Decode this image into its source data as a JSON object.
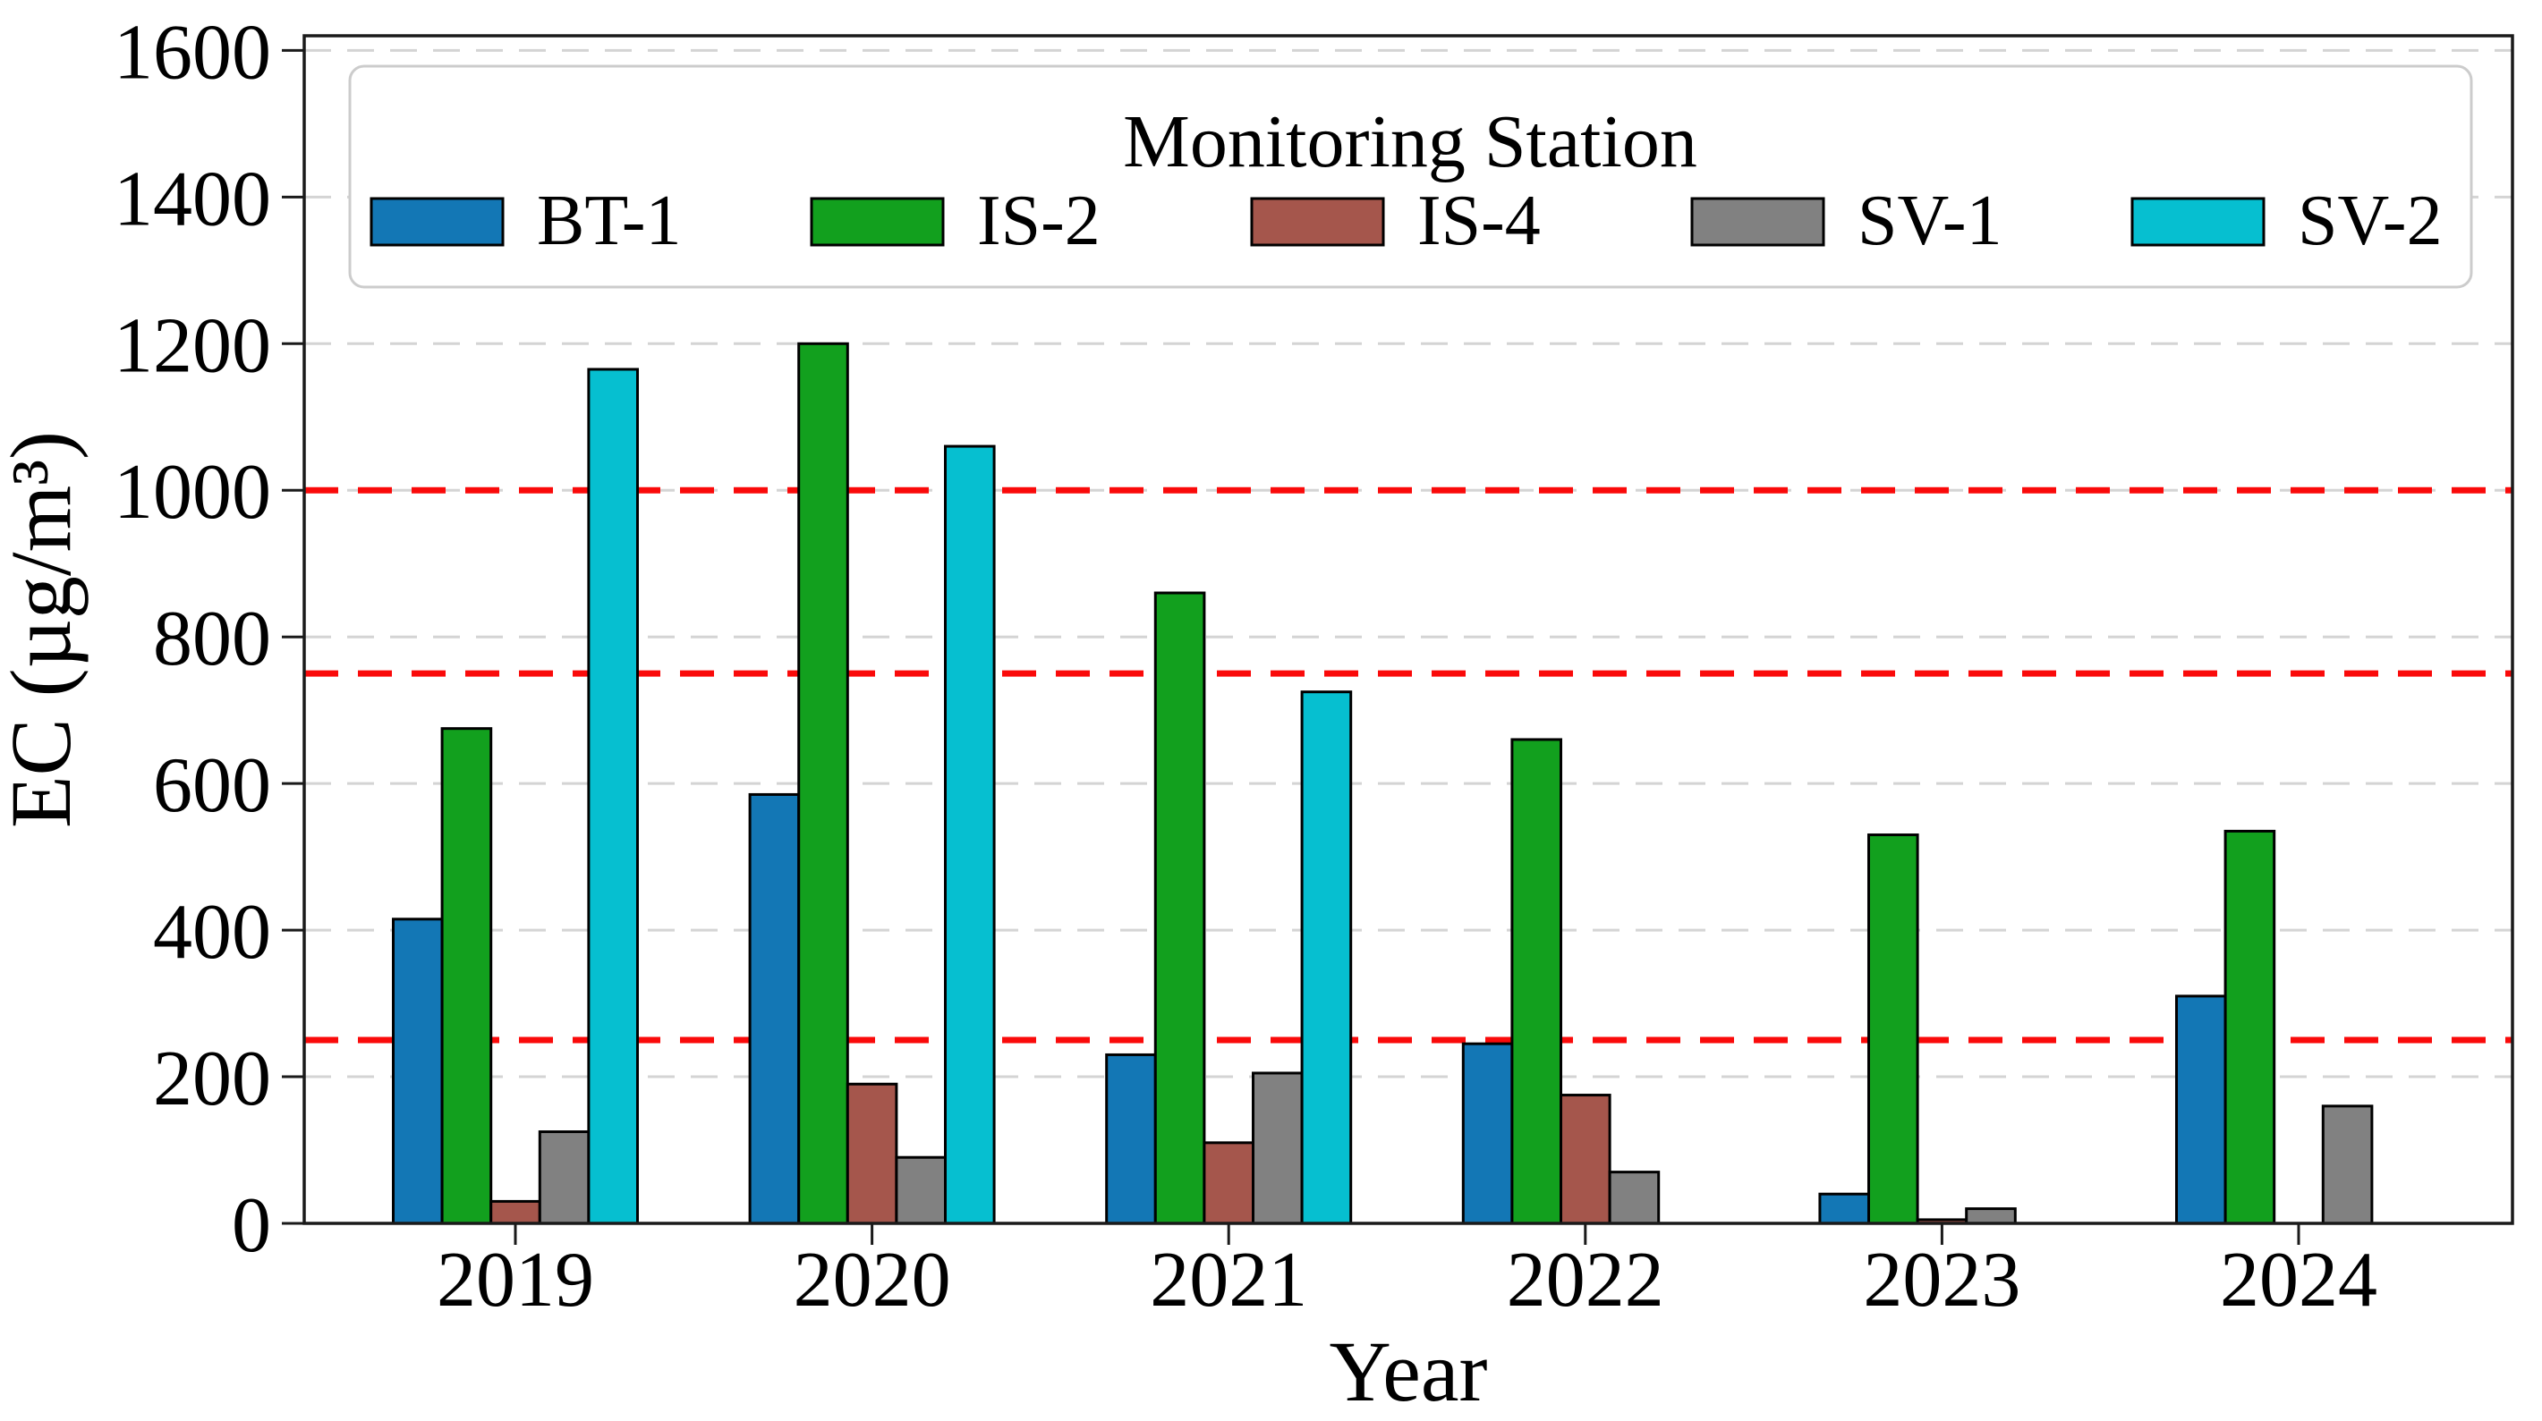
{
  "chart_data": {
    "type": "bar",
    "title": "",
    "xlabel": "Year",
    "ylabel": "EC (µg/m³)",
    "categories": [
      "2019",
      "2020",
      "2021",
      "2022",
      "2023",
      "2024"
    ],
    "series": [
      {
        "name": "BT-1",
        "color": "#1377b5",
        "values": [
          415,
          585,
          230,
          245,
          40,
          310
        ]
      },
      {
        "name": "IS-2",
        "color": "#12a01e",
        "values": [
          675,
          1200,
          860,
          660,
          530,
          535
        ]
      },
      {
        "name": "IS-4",
        "color": "#a5564c",
        "values": [
          30,
          190,
          110,
          175,
          5,
          0
        ]
      },
      {
        "name": "SV-1",
        "color": "#818181",
        "values": [
          125,
          90,
          205,
          70,
          20,
          160
        ]
      },
      {
        "name": "SV-2",
        "color": "#06bfd0",
        "values": [
          1165,
          1060,
          725,
          0,
          0,
          0
        ]
      }
    ],
    "legend": {
      "title": "Monitoring Station",
      "position": "upper center",
      "columns": 5
    },
    "ylim": [
      0,
      1620
    ],
    "yticks": [
      0,
      200,
      400,
      600,
      800,
      1000,
      1200,
      1400,
      1600
    ],
    "grid": {
      "show": true,
      "color": "#d4d4d4",
      "style": "dashed",
      "interval": 200
    },
    "reference_lines": [
      {
        "y": 1000,
        "color": "#fa0a0a",
        "style": "dashed"
      },
      {
        "y": 750,
        "color": "#fa0a0a",
        "style": "dashed"
      },
      {
        "y": 250,
        "color": "#fa0a0a",
        "style": "dashed"
      }
    ],
    "bar_edge_color": "#000000",
    "spine_color": "#1a1a1a",
    "legend_border_color": "#cccccc"
  }
}
